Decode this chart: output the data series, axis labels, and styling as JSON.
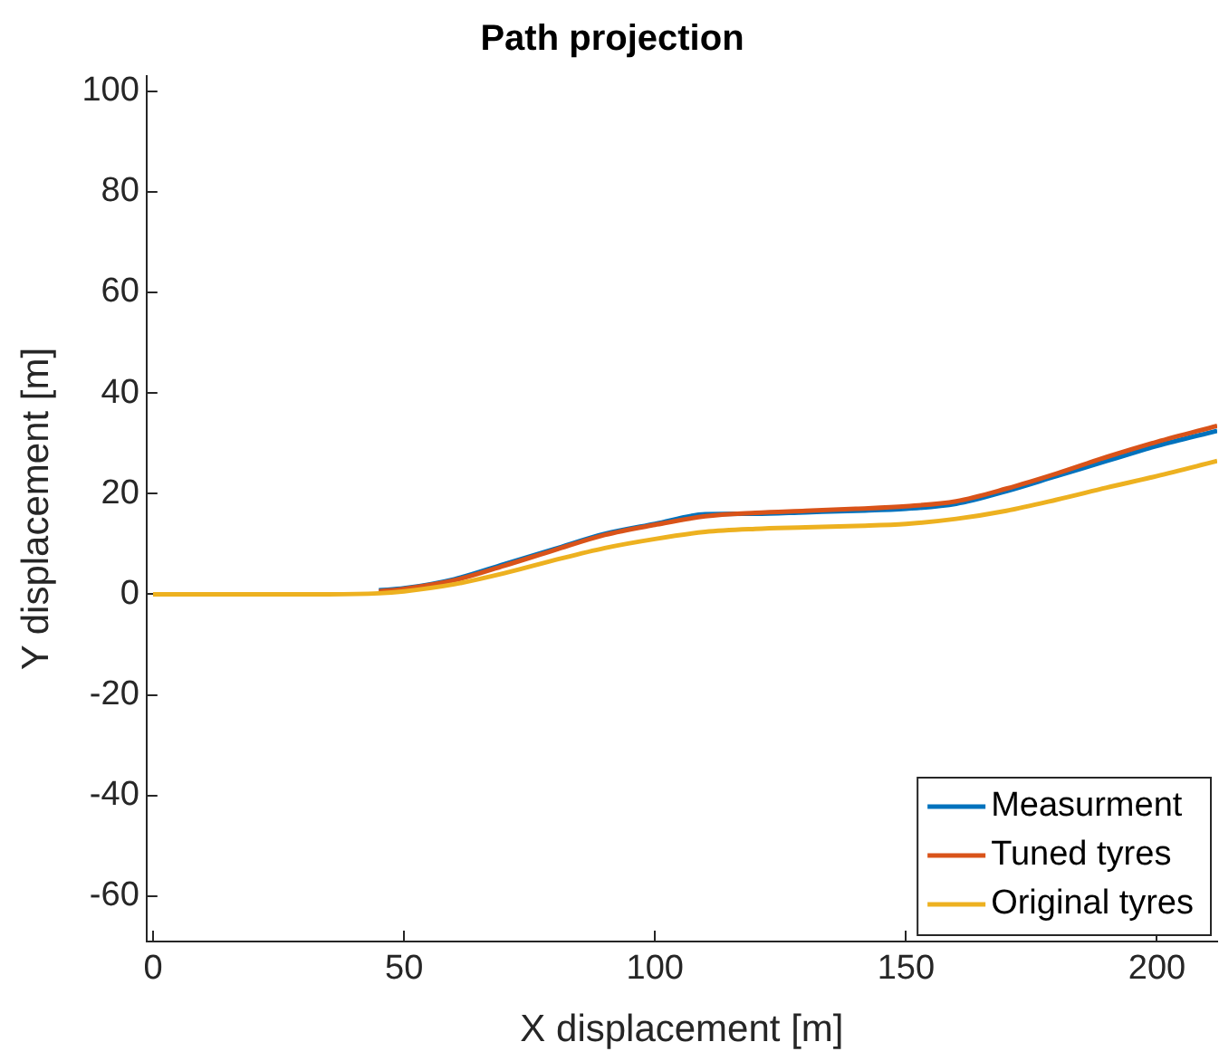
{
  "chart_data": {
    "type": "line",
    "title": "Path projection",
    "xlabel": "X displacement [m]",
    "ylabel": "Y displacement [m]",
    "x": [
      0,
      20,
      35,
      45,
      50,
      60,
      70,
      80,
      90,
      100,
      110,
      120,
      130,
      140,
      150,
      160,
      170,
      180,
      190,
      200,
      212
    ],
    "series": [
      {
        "name": "Measurment",
        "color": "#0072bd",
        "values": [
          null,
          null,
          null,
          0.8,
          1.2,
          3,
          6,
          9,
          12,
          14,
          15.9,
          16,
          16.3,
          16.6,
          17,
          18,
          20.5,
          23.5,
          26.5,
          29.5,
          32.5
        ]
      },
      {
        "name": "Tuned tyres",
        "color": "#d95319",
        "values": [
          null,
          null,
          null,
          0.6,
          1.1,
          2.8,
          5.7,
          8.8,
          11.8,
          13.8,
          15.5,
          16.2,
          16.6,
          17,
          17.5,
          18.5,
          21,
          24,
          27.3,
          30.3,
          33.5
        ]
      },
      {
        "name": "Original tyres",
        "color": "#edb120",
        "values": [
          0,
          0,
          0,
          0.2,
          0.6,
          2,
          4.2,
          6.8,
          9.2,
          11,
          12.4,
          13,
          13.3,
          13.6,
          14,
          15,
          16.6,
          18.8,
          21.2,
          23.5,
          26.5
        ]
      }
    ],
    "xlim": [
      -1.3,
      212
    ],
    "xticks": [
      0,
      50,
      100,
      150,
      200
    ],
    "ylim": [
      -69,
      103
    ],
    "yticks": [
      -60,
      -40,
      -20,
      0,
      20,
      40,
      60,
      80,
      100
    ],
    "grid": false,
    "legend": "bottom right",
    "marker": "none",
    "line_style": "solid"
  }
}
